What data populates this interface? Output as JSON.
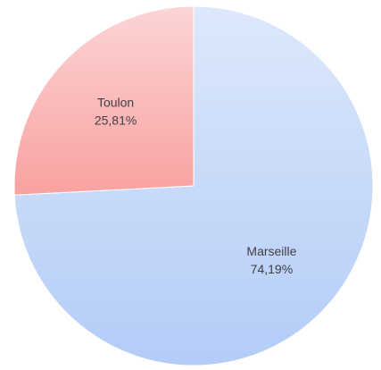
{
  "chart_data": {
    "type": "pie",
    "categories": [
      "Marseille",
      "Toulon"
    ],
    "values": [
      74.19,
      25.81
    ],
    "value_labels": [
      "74,19%",
      "25,81%"
    ],
    "colors": [
      "#b3ccf7",
      "#f9a1a1"
    ]
  }
}
